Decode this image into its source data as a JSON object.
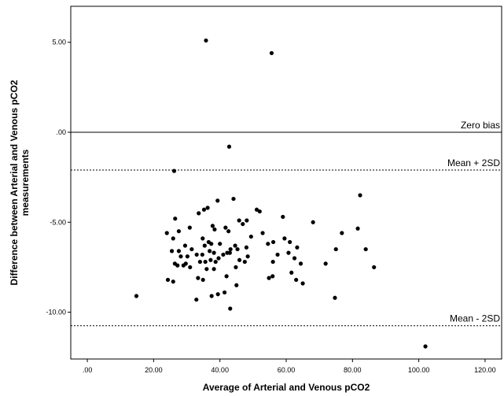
{
  "chart_data": {
    "type": "scatter",
    "title": "",
    "xlabel": "Average of Arterial and Venous pCO2",
    "ylabel_lines": [
      "Difference between Arterial and Venous pCO2",
      "measurements"
    ],
    "xlim": [
      -5,
      125
    ],
    "ylim": [
      -12.6,
      7.0
    ],
    "xticks": [
      0,
      20,
      40,
      60,
      80,
      100,
      120
    ],
    "xtick_labels": [
      ".00",
      "20.00",
      "40.00",
      "60.00",
      "80.00",
      "100.00",
      "120.00"
    ],
    "yticks": [
      5,
      0,
      -5,
      -10
    ],
    "ytick_labels": [
      "5.00",
      ".00",
      "-5.00",
      "-10.00"
    ],
    "grid": false,
    "reference_lines": [
      {
        "label": "Zero bias",
        "y": 0,
        "style": "solid"
      },
      {
        "label": "Mean + 2SD",
        "y": -2.1,
        "style": "dashed"
      },
      {
        "label": "Mean - 2SD",
        "y": -10.75,
        "style": "dashed"
      }
    ],
    "points": [
      {
        "x": 35.8,
        "y": 5.1
      },
      {
        "x": 55.6,
        "y": 4.4
      },
      {
        "x": 42.8,
        "y": -0.8
      },
      {
        "x": 26.2,
        "y": -2.15
      },
      {
        "x": 82.3,
        "y": -3.5
      },
      {
        "x": 44.1,
        "y": -3.7
      },
      {
        "x": 39.3,
        "y": -3.8
      },
      {
        "x": 36.3,
        "y": -4.2
      },
      {
        "x": 35.2,
        "y": -4.3
      },
      {
        "x": 51.1,
        "y": -4.3
      },
      {
        "x": 52.0,
        "y": -4.4
      },
      {
        "x": 33.6,
        "y": -4.5
      },
      {
        "x": 59.0,
        "y": -4.7
      },
      {
        "x": 26.5,
        "y": -4.8
      },
      {
        "x": 45.8,
        "y": -4.9
      },
      {
        "x": 48.1,
        "y": -4.9
      },
      {
        "x": 46.9,
        "y": -5.1
      },
      {
        "x": 68.1,
        "y": -5.0
      },
      {
        "x": 37.8,
        "y": -5.2
      },
      {
        "x": 41.7,
        "y": -5.3
      },
      {
        "x": 38.4,
        "y": -5.4
      },
      {
        "x": 81.6,
        "y": -5.35
      },
      {
        "x": 30.9,
        "y": -5.3
      },
      {
        "x": 27.6,
        "y": -5.5
      },
      {
        "x": 42.6,
        "y": -5.5
      },
      {
        "x": 52.9,
        "y": -5.6
      },
      {
        "x": 76.8,
        "y": -5.6
      },
      {
        "x": 24.0,
        "y": -5.6
      },
      {
        "x": 49.4,
        "y": -5.8
      },
      {
        "x": 59.5,
        "y": -5.9
      },
      {
        "x": 34.8,
        "y": -5.9
      },
      {
        "x": 25.9,
        "y": -5.9
      },
      {
        "x": 36.6,
        "y": -6.1
      },
      {
        "x": 56.1,
        "y": -6.1
      },
      {
        "x": 61.1,
        "y": -6.1
      },
      {
        "x": 54.5,
        "y": -6.2
      },
      {
        "x": 37.4,
        "y": -6.2
      },
      {
        "x": 40.0,
        "y": -6.2
      },
      {
        "x": 35.4,
        "y": -6.3
      },
      {
        "x": 29.5,
        "y": -6.3
      },
      {
        "x": 44.6,
        "y": -6.3
      },
      {
        "x": 48.0,
        "y": -6.4
      },
      {
        "x": 63.3,
        "y": -6.4
      },
      {
        "x": 45.3,
        "y": -6.5
      },
      {
        "x": 43.2,
        "y": -6.5
      },
      {
        "x": 84.0,
        "y": -6.5
      },
      {
        "x": 31.5,
        "y": -6.5
      },
      {
        "x": 75.0,
        "y": -6.5
      },
      {
        "x": 36.9,
        "y": -6.6
      },
      {
        "x": 27.6,
        "y": -6.6
      },
      {
        "x": 25.5,
        "y": -6.6
      },
      {
        "x": 42.2,
        "y": -6.7
      },
      {
        "x": 38.2,
        "y": -6.7
      },
      {
        "x": 60.7,
        "y": -6.7
      },
      {
        "x": 43.0,
        "y": -6.7
      },
      {
        "x": 34.7,
        "y": -6.8
      },
      {
        "x": 41.0,
        "y": -6.8
      },
      {
        "x": 57.4,
        "y": -6.8
      },
      {
        "x": 33.0,
        "y": -6.8
      },
      {
        "x": 30.2,
        "y": -6.9
      },
      {
        "x": 28.2,
        "y": -6.9
      },
      {
        "x": 48.4,
        "y": -6.9
      },
      {
        "x": 39.6,
        "y": -7.0
      },
      {
        "x": 62.5,
        "y": -7.0
      },
      {
        "x": 45.9,
        "y": -7.1
      },
      {
        "x": 37.2,
        "y": -7.1
      },
      {
        "x": 35.6,
        "y": -7.2
      },
      {
        "x": 34.0,
        "y": -7.2
      },
      {
        "x": 47.5,
        "y": -7.2
      },
      {
        "x": 38.7,
        "y": -7.2
      },
      {
        "x": 56.0,
        "y": -7.2
      },
      {
        "x": 26.4,
        "y": -7.3
      },
      {
        "x": 29.7,
        "y": -7.3
      },
      {
        "x": 64.4,
        "y": -7.3
      },
      {
        "x": 71.9,
        "y": -7.3
      },
      {
        "x": 29.0,
        "y": -7.4
      },
      {
        "x": 27.2,
        "y": -7.4
      },
      {
        "x": 44.8,
        "y": -7.5
      },
      {
        "x": 31.0,
        "y": -7.5
      },
      {
        "x": 86.5,
        "y": -7.5
      },
      {
        "x": 36.0,
        "y": -7.6
      },
      {
        "x": 38.2,
        "y": -7.6
      },
      {
        "x": 61.6,
        "y": -7.8
      },
      {
        "x": 55.9,
        "y": -8.0
      },
      {
        "x": 54.8,
        "y": -8.1
      },
      {
        "x": 42.0,
        "y": -8.0
      },
      {
        "x": 33.4,
        "y": -8.1
      },
      {
        "x": 34.9,
        "y": -8.2
      },
      {
        "x": 24.3,
        "y": -8.2
      },
      {
        "x": 25.9,
        "y": -8.3
      },
      {
        "x": 63.0,
        "y": -8.2
      },
      {
        "x": 65.0,
        "y": -8.4
      },
      {
        "x": 45.0,
        "y": -8.5
      },
      {
        "x": 41.4,
        "y": -8.9
      },
      {
        "x": 39.4,
        "y": -9.0
      },
      {
        "x": 37.5,
        "y": -9.1
      },
      {
        "x": 14.8,
        "y": -9.1
      },
      {
        "x": 74.7,
        "y": -9.2
      },
      {
        "x": 32.9,
        "y": -9.3
      },
      {
        "x": 43.1,
        "y": -9.8
      },
      {
        "x": 102.0,
        "y": -11.9
      }
    ]
  }
}
